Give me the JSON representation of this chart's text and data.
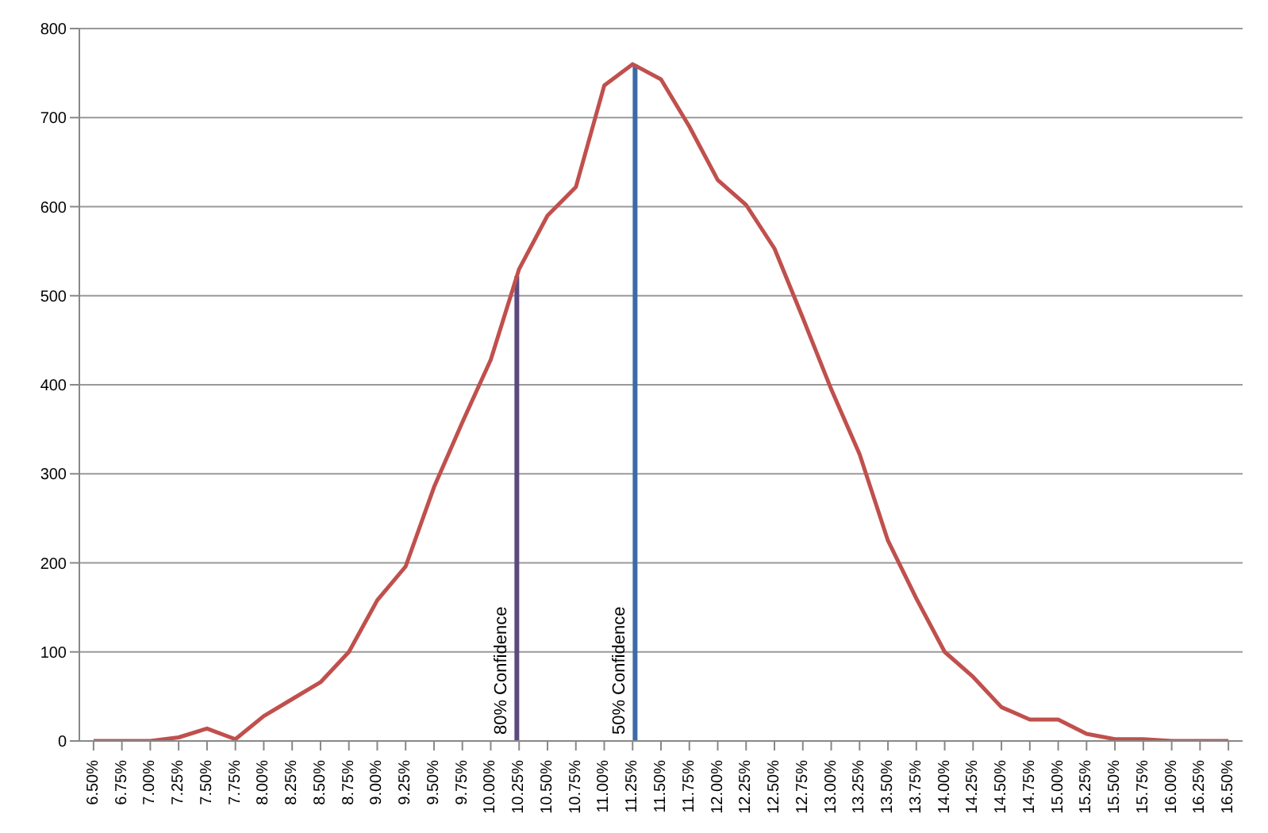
{
  "chart_data": {
    "type": "line",
    "categories": [
      "6.50%",
      "6.75%",
      "7.00%",
      "7.25%",
      "7.50%",
      "7.75%",
      "8.00%",
      "8.25%",
      "8.50%",
      "8.75%",
      "9.00%",
      "9.25%",
      "9.50%",
      "9.75%",
      "10.00%",
      "10.25%",
      "10.50%",
      "10.75%",
      "11.00%",
      "11.25%",
      "11.50%",
      "11.75%",
      "12.00%",
      "12.25%",
      "12.50%",
      "12.75%",
      "13.00%",
      "13.25%",
      "13.50%",
      "13.75%",
      "14.00%",
      "14.25%",
      "14.50%",
      "14.75%",
      "15.00%",
      "15.25%",
      "15.50%",
      "15.75%",
      "16.00%",
      "16.25%",
      "16.50%"
    ],
    "series": [
      {
        "color": "#c0504d",
        "values": [
          0,
          0,
          0,
          4,
          14,
          2,
          28,
          47,
          66,
          100,
          158,
          196,
          285,
          358,
          428,
          530,
          590,
          622,
          736,
          760,
          743,
          690,
          630,
          602,
          553,
          475,
          395,
          322,
          225,
          160,
          100,
          72,
          38,
          24,
          24,
          8,
          2,
          2,
          0,
          0,
          0
        ]
      },
      {
        "type": "bar",
        "name": "80% Confidence",
        "color": "#5b4a80",
        "values": [
          null,
          null,
          null,
          null,
          null,
          null,
          null,
          null,
          null,
          null,
          null,
          null,
          null,
          null,
          null,
          522,
          null,
          null,
          null,
          null,
          null,
          null,
          null,
          null,
          null,
          null,
          null,
          null,
          null,
          null,
          null,
          null,
          null,
          null,
          null,
          null,
          null,
          null,
          null,
          null,
          null
        ]
      },
      {
        "type": "bar",
        "name": "50% Confidence",
        "color": "#3d6aa8",
        "values": [
          null,
          null,
          null,
          null,
          null,
          null,
          null,
          null,
          null,
          null,
          null,
          null,
          null,
          null,
          null,
          null,
          null,
          null,
          null,
          760,
          null,
          null,
          null,
          null,
          null,
          null,
          null,
          null,
          null,
          null,
          null,
          null,
          null,
          null,
          null,
          null,
          null,
          null,
          null,
          null,
          null
        ]
      }
    ],
    "ylim": [
      0,
      800
    ],
    "yticks": [
      0,
      100,
      200,
      300,
      400,
      500,
      600,
      700,
      800
    ],
    "grid": "y",
    "legend": false,
    "marker": "none"
  }
}
